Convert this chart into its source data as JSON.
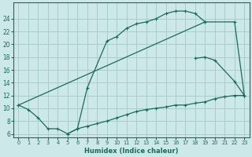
{
  "xlabel": "Humidex (Indice chaleur)",
  "bg_color": "#cce8e8",
  "grid_color": "#aacccc",
  "line_color": "#1a6b5a",
  "xlim": [
    -0.5,
    23.5
  ],
  "ylim": [
    5.5,
    26.5
  ],
  "xticks": [
    0,
    1,
    2,
    3,
    4,
    5,
    6,
    7,
    8,
    9,
    10,
    11,
    12,
    13,
    14,
    15,
    16,
    17,
    18,
    19,
    20,
    21,
    22,
    23
  ],
  "yticks": [
    6,
    8,
    10,
    12,
    14,
    16,
    18,
    20,
    22,
    24
  ],
  "line1_x": [
    0,
    1,
    2,
    3,
    4,
    5,
    6,
    7,
    9,
    10,
    11,
    12,
    13,
    14,
    15,
    16,
    17,
    18,
    19
  ],
  "line1_y": [
    10.5,
    9.8,
    8.5,
    6.8,
    6.8,
    6.0,
    6.8,
    13.2,
    20.5,
    21.2,
    22.5,
    23.2,
    23.5,
    24.0,
    24.8,
    25.2,
    25.2,
    24.8,
    23.5
  ],
  "line2_x": [
    0,
    19,
    22,
    23
  ],
  "line2_y": [
    10.5,
    23.5,
    23.5,
    12.0
  ],
  "line3_x": [
    18,
    19,
    20,
    22,
    23
  ],
  "line3_y": [
    17.8,
    18.0,
    17.5,
    14.2,
    12.0
  ],
  "line4_x": [
    5,
    6,
    7,
    8,
    9,
    10,
    11,
    12,
    13,
    14,
    15,
    16,
    17,
    18,
    19,
    20,
    21,
    22,
    23
  ],
  "line4_y": [
    6.0,
    6.8,
    7.2,
    7.6,
    8.0,
    8.5,
    9.0,
    9.5,
    9.8,
    10.0,
    10.2,
    10.5,
    10.5,
    10.8,
    11.0,
    11.5,
    11.8,
    12.0,
    12.0
  ]
}
